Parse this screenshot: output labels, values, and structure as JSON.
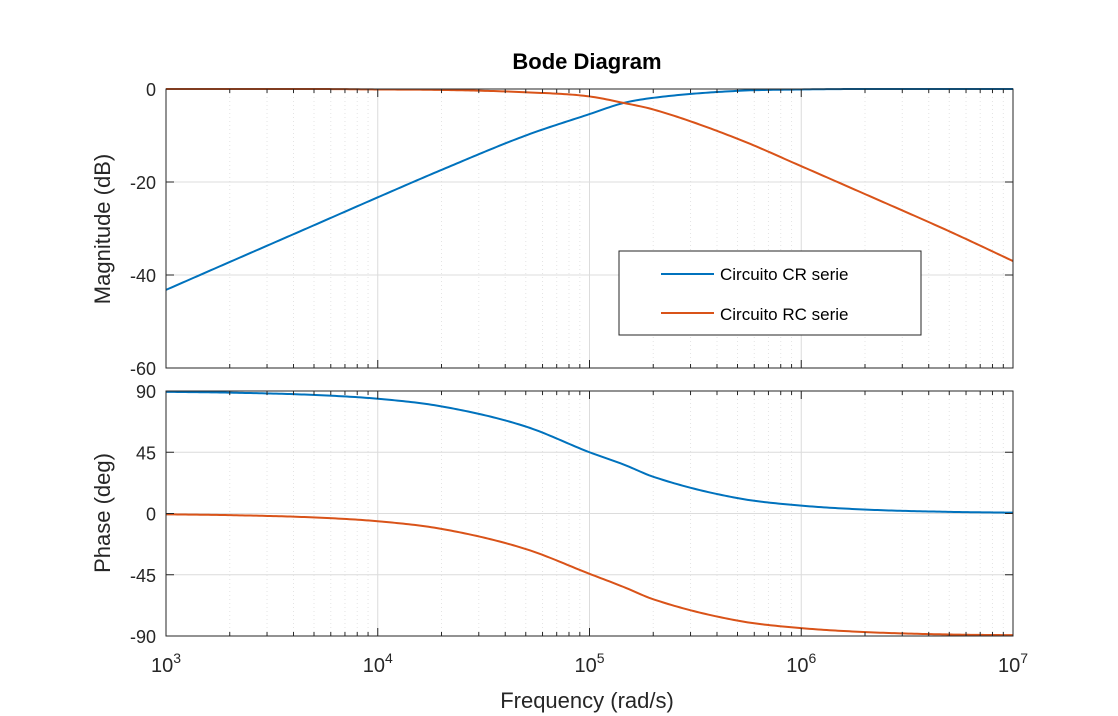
{
  "chart_data": {
    "type": "line",
    "title": "Bode Diagram",
    "xlabel": "Frequency  (rad/s)",
    "xscale": "log",
    "xlim": [
      1000,
      10000000
    ],
    "x_ticks": [
      {
        "value": 1000,
        "base": "10",
        "exp": "3"
      },
      {
        "value": 10000,
        "base": "10",
        "exp": "4"
      },
      {
        "value": 100000,
        "base": "10",
        "exp": "5"
      },
      {
        "value": 1000000,
        "base": "10",
        "exp": "6"
      },
      {
        "value": 10000000,
        "base": "10",
        "exp": "7"
      }
    ],
    "grid": true,
    "colors": {
      "cr": "#0072BD",
      "rc": "#D95319",
      "grid": "#dcdcdc",
      "axis": "#262626"
    },
    "panels": [
      {
        "id": "magnitude",
        "ylabel": "Magnitude (dB)",
        "ylim": [
          -60,
          0
        ],
        "yticks": [
          0,
          -20,
          -40,
          -60
        ],
        "ytick_labels": [
          "0",
          "-20",
          "-40",
          "-60"
        ]
      },
      {
        "id": "phase",
        "ylabel": "Phase (deg)",
        "ylim": [
          -90,
          90
        ],
        "yticks": [
          90,
          45,
          0,
          -45,
          -90
        ],
        "ytick_labels": [
          "90",
          "45",
          "0",
          "-45",
          "-90"
        ]
      }
    ],
    "legend": {
      "placement": "lower-right of magnitude panel",
      "entries": [
        "Circuito CR serie",
        "Circuito RC serie"
      ]
    },
    "series": [
      {
        "name": "Circuito CR serie",
        "color": "#0072BD",
        "x": [
          1000,
          2000,
          5000,
          10000,
          20000,
          50000,
          100000,
          145000,
          200000,
          500000,
          1000000,
          2000000,
          5000000,
          10000000
        ],
        "magnitude_db": [
          -43.2,
          -37.2,
          -29.3,
          -23.3,
          -17.4,
          -10.0,
          -5.4,
          -3.0,
          -1.9,
          -0.4,
          -0.1,
          0.0,
          0.0,
          0.0
        ],
        "phase_deg": [
          89.4,
          88.8,
          87.1,
          84.3,
          78.7,
          63.9,
          45.0,
          36.0,
          27.0,
          11.3,
          5.8,
          2.9,
          1.2,
          0.6
        ]
      },
      {
        "name": "Circuito RC serie",
        "color": "#D95319",
        "x": [
          1000,
          2000,
          5000,
          10000,
          20000,
          50000,
          100000,
          145000,
          200000,
          500000,
          1000000,
          2000000,
          5000000,
          10000000
        ],
        "magnitude_db": [
          0.0,
          0.0,
          0.0,
          -0.1,
          -0.2,
          -0.7,
          -1.6,
          -3.0,
          -4.4,
          -10.7,
          -16.6,
          -22.6,
          -30.6,
          -37.0
        ],
        "phase_deg": [
          -0.6,
          -1.2,
          -2.9,
          -5.7,
          -11.3,
          -26.1,
          -44.3,
          -54.0,
          -63.0,
          -78.7,
          -84.2,
          -87.1,
          -88.9,
          -89.4
        ]
      }
    ]
  }
}
